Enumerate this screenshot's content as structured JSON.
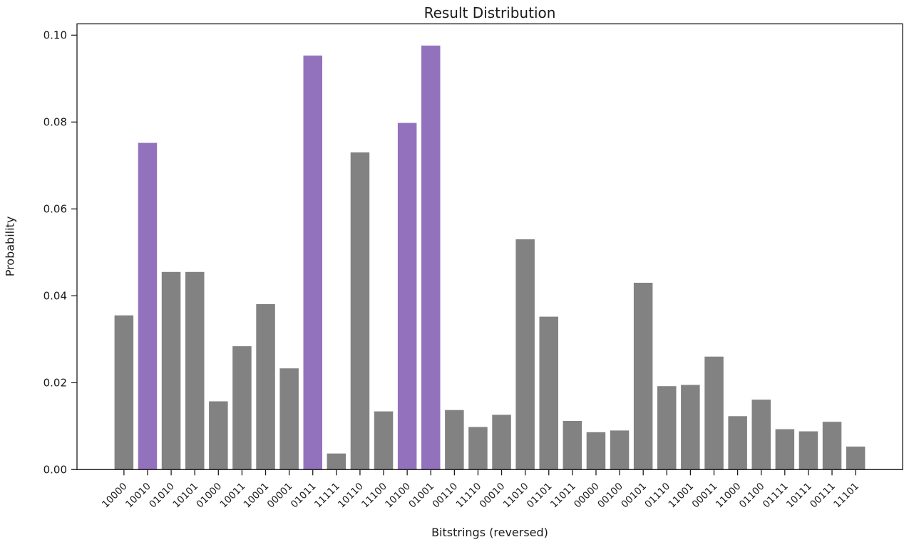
{
  "window": {
    "kind": "matplotlib-figure",
    "background": "#ffffff"
  },
  "chart_data": {
    "type": "bar",
    "title": "Result Distribution",
    "xlabel": "Bitstrings (reversed)",
    "ylabel": "Probability",
    "categories": [
      "10000",
      "10010",
      "01010",
      "10101",
      "01000",
      "10011",
      "10001",
      "00001",
      "01011",
      "11111",
      "10110",
      "11100",
      "10100",
      "01001",
      "00110",
      "11110",
      "00010",
      "11010",
      "01101",
      "11011",
      "00000",
      "00100",
      "00101",
      "01110",
      "11001",
      "00011",
      "11000",
      "01100",
      "01111",
      "10111",
      "00111",
      "11101"
    ],
    "values": [
      0.0355,
      0.0752,
      0.0455,
      0.0455,
      0.0157,
      0.0284,
      0.0381,
      0.0233,
      0.0953,
      0.0037,
      0.073,
      0.0134,
      0.0798,
      0.0976,
      0.0137,
      0.0098,
      0.0126,
      0.053,
      0.0352,
      0.0112,
      0.0086,
      0.009,
      0.043,
      0.0192,
      0.0195,
      0.026,
      0.0123,
      0.0161,
      0.0093,
      0.0088,
      0.011,
      0.0053
    ],
    "highlighted_categories": [
      "10010",
      "01011",
      "10100",
      "01001"
    ],
    "bar_color": "#828282",
    "highlight_color": "#9372bd",
    "axis_color": "#1c1c1c",
    "text_color": "#1a1a1a",
    "yticks": [
      0.0,
      0.02,
      0.04,
      0.06,
      0.08,
      0.1
    ],
    "ytick_format_decimals": 2,
    "ylim": [
      0,
      0.1026
    ],
    "xtick_rotation_deg": 45,
    "grid": false,
    "legend": null
  }
}
